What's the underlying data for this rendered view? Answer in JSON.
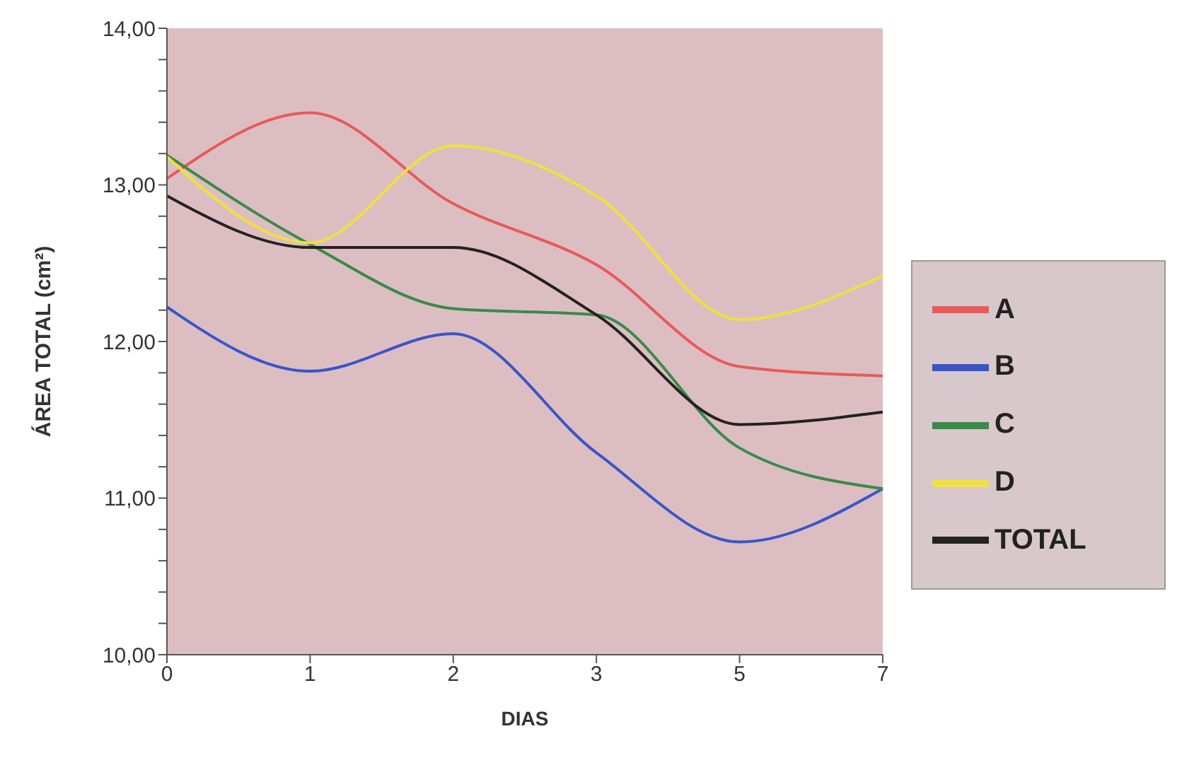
{
  "chart_data": {
    "type": "line",
    "xlabel": "DIAS",
    "ylabel": "ÁREA TOTAL (cm²)",
    "categories": [
      "0",
      "1",
      "2",
      "3",
      "5",
      "7"
    ],
    "series": [
      {
        "name": "A",
        "color": "#e85a5a",
        "values": [
          13.04,
          13.46,
          12.88,
          12.49,
          11.84,
          11.78
        ]
      },
      {
        "name": "B",
        "color": "#3a55c8",
        "values": [
          12.22,
          11.81,
          12.05,
          11.29,
          10.72,
          11.06
        ]
      },
      {
        "name": "C",
        "color": "#3a8a4a",
        "values": [
          13.19,
          12.62,
          12.21,
          12.17,
          11.32,
          11.06
        ]
      },
      {
        "name": "D",
        "color": "#f0e040",
        "values": [
          13.18,
          12.63,
          13.25,
          12.93,
          12.14,
          12.42
        ]
      },
      {
        "name": "TOTAL",
        "color": "#222222",
        "values": [
          12.93,
          12.6,
          12.6,
          12.17,
          11.47,
          11.55
        ]
      }
    ],
    "ylim": [
      10,
      14
    ],
    "yticks": [
      {
        "value": 10,
        "label": "10,00"
      },
      {
        "value": 10.2,
        "label": null
      },
      {
        "value": 10.4,
        "label": null
      },
      {
        "value": 10.6,
        "label": null
      },
      {
        "value": 10.8,
        "label": null
      },
      {
        "value": 11,
        "label": "11,00"
      },
      {
        "value": 11.2,
        "label": null
      },
      {
        "value": 11.4,
        "label": null
      },
      {
        "value": 11.6,
        "label": null
      },
      {
        "value": 11.8,
        "label": null
      },
      {
        "value": 12,
        "label": "12,00"
      },
      {
        "value": 12.2,
        "label": null
      },
      {
        "value": 12.4,
        "label": null
      },
      {
        "value": 12.6,
        "label": null
      },
      {
        "value": 12.8,
        "label": null
      },
      {
        "value": 13,
        "label": "13,00"
      },
      {
        "value": 13.2,
        "label": null
      },
      {
        "value": 13.4,
        "label": null
      },
      {
        "value": 13.6,
        "label": null
      },
      {
        "value": 13.8,
        "label": null
      },
      {
        "value": 14,
        "label": "14,00"
      }
    ],
    "legend": "right",
    "grid": false,
    "marker": "none",
    "line_style": "solid"
  }
}
